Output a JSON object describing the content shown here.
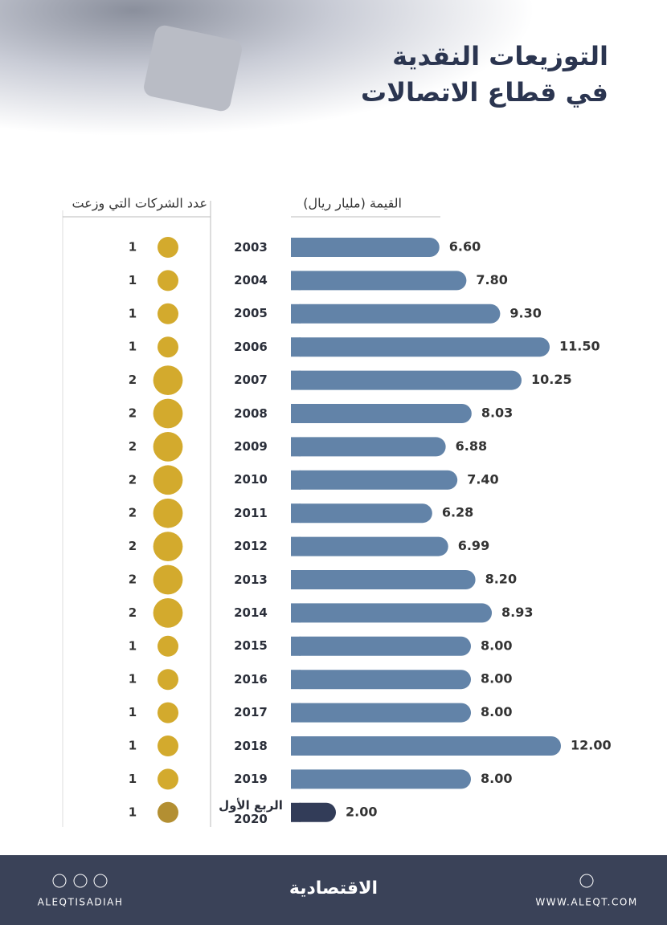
{
  "header": {
    "title_line1": "التوزيعات النقدية",
    "title_line2": "في قطاع الاتصالات"
  },
  "chart_data": {
    "type": "bar-bubble",
    "categories": [
      "2003",
      "2004",
      "2005",
      "2006",
      "2007",
      "2008",
      "2009",
      "2010",
      "2011",
      "2012",
      "2013",
      "2014",
      "2015",
      "2016",
      "2017",
      "2018",
      "2019",
      "الربع الأول 2020"
    ],
    "series": [
      {
        "name": "القيمة (مليار ريال)",
        "color": "#6283a8",
        "highlight_color": "#323c58",
        "values": [
          6.6,
          7.8,
          9.3,
          11.5,
          10.25,
          8.03,
          6.88,
          7.4,
          6.28,
          6.99,
          8.2,
          8.93,
          8,
          8,
          8,
          12,
          8,
          2
        ],
        "value_labels": [
          "6.60",
          "7.80",
          "9.30",
          "11.50",
          "10.25",
          "8.03",
          "6.88",
          "7.40",
          "6.28",
          "6.99",
          "8.20",
          "8.93",
          "8.00",
          "8.00",
          "8.00",
          "12.00",
          "8.00",
          "2.00"
        ]
      },
      {
        "name": "عدد الشركات التي وزعت",
        "color": "#d3aa2d",
        "highlight_color": "#b38f32",
        "values": [
          1,
          1,
          1,
          1,
          2,
          2,
          2,
          2,
          2,
          2,
          2,
          2,
          1,
          1,
          1,
          1,
          1,
          1
        ]
      }
    ],
    "xlim": [
      0,
      12.5
    ]
  },
  "footer": {
    "handle": "ALEQTISADIAH",
    "logo": "الاقتصادية",
    "website": "WWW.ALEQT.COM"
  }
}
